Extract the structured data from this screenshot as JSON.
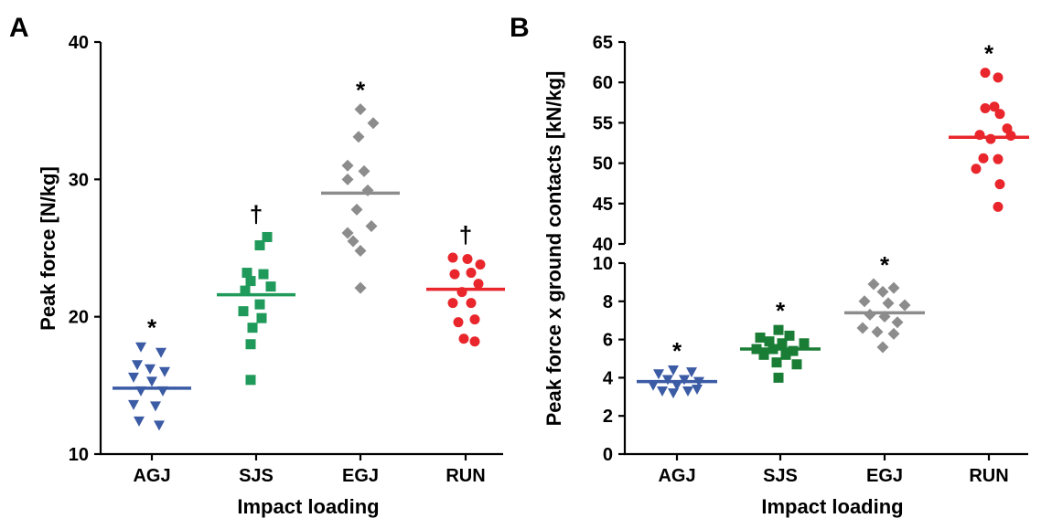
{
  "chart_data": [
    {
      "type": "scatter",
      "panel": "A",
      "xlabel": "Impact loading",
      "ylabel": "Peak force [N/kg]",
      "ylim": [
        10,
        40
      ],
      "yticks": [
        10,
        20,
        30,
        40
      ],
      "categories": [
        "AGJ",
        "SJS",
        "EGJ",
        "RUN"
      ],
      "colors": [
        "#3b5ba5",
        "#1f9a5a",
        "#8c8c8c",
        "#e8262b"
      ],
      "markers": [
        "triangle-down",
        "square",
        "diamond",
        "circle"
      ],
      "means": [
        14.8,
        21.6,
        29.0,
        22.0
      ],
      "significance": [
        "*",
        "†",
        "*",
        "†"
      ],
      "series": [
        {
          "name": "AGJ",
          "values": [
            {
              "x": -0.12,
              "y": 17.8
            },
            {
              "x": 0.1,
              "y": 17.4
            },
            {
              "x": -0.16,
              "y": 16.5
            },
            {
              "x": -0.02,
              "y": 16.2
            },
            {
              "x": 0.14,
              "y": 16.0
            },
            {
              "x": -0.2,
              "y": 15.6
            },
            {
              "x": 0.0,
              "y": 15.3
            },
            {
              "x": -0.12,
              "y": 14.6
            },
            {
              "x": 0.12,
              "y": 14.6
            },
            {
              "x": -0.2,
              "y": 13.6
            },
            {
              "x": 0.04,
              "y": 13.5
            },
            {
              "x": -0.14,
              "y": 12.4
            },
            {
              "x": 0.08,
              "y": 12.1
            }
          ]
        },
        {
          "name": "SJS",
          "values": [
            {
              "x": 0.12,
              "y": 25.8
            },
            {
              "x": 0.04,
              "y": 25.2
            },
            {
              "x": -0.1,
              "y": 23.2
            },
            {
              "x": 0.08,
              "y": 23.1
            },
            {
              "x": -0.06,
              "y": 22.6
            },
            {
              "x": 0.16,
              "y": 22.2
            },
            {
              "x": -0.12,
              "y": 21.9
            },
            {
              "x": 0.04,
              "y": 20.9
            },
            {
              "x": -0.14,
              "y": 20.4
            },
            {
              "x": 0.06,
              "y": 19.9
            },
            {
              "x": -0.04,
              "y": 19.2
            },
            {
              "x": -0.06,
              "y": 18.0
            },
            {
              "x": -0.06,
              "y": 15.4
            }
          ]
        },
        {
          "name": "EGJ",
          "values": [
            {
              "x": 0.0,
              "y": 35.1
            },
            {
              "x": 0.14,
              "y": 34.1
            },
            {
              "x": -0.02,
              "y": 33.1
            },
            {
              "x": -0.14,
              "y": 31.0
            },
            {
              "x": 0.04,
              "y": 30.6
            },
            {
              "x": -0.14,
              "y": 30.0
            },
            {
              "x": 0.08,
              "y": 29.2
            },
            {
              "x": -0.04,
              "y": 27.8
            },
            {
              "x": 0.12,
              "y": 26.6
            },
            {
              "x": -0.14,
              "y": 26.1
            },
            {
              "x": -0.08,
              "y": 25.5
            },
            {
              "x": 0.0,
              "y": 24.8
            },
            {
              "x": 0.0,
              "y": 22.1
            }
          ]
        },
        {
          "name": "RUN",
          "values": [
            {
              "x": -0.14,
              "y": 24.3
            },
            {
              "x": 0.02,
              "y": 24.2
            },
            {
              "x": 0.16,
              "y": 23.8
            },
            {
              "x": 0.06,
              "y": 23.2
            },
            {
              "x": -0.12,
              "y": 23.1
            },
            {
              "x": 0.14,
              "y": 22.4
            },
            {
              "x": -0.04,
              "y": 21.8
            },
            {
              "x": -0.14,
              "y": 21.0
            },
            {
              "x": 0.06,
              "y": 21.0
            },
            {
              "x": 0.1,
              "y": 19.8
            },
            {
              "x": -0.08,
              "y": 19.6
            },
            {
              "x": -0.02,
              "y": 18.4
            },
            {
              "x": 0.1,
              "y": 18.2
            }
          ]
        }
      ]
    },
    {
      "type": "scatter",
      "panel": "B",
      "xlabel": "Impact loading",
      "ylabel": "Peak force x ground contacts [kN/kg]",
      "broken_axis": true,
      "lower_ylim": [
        0,
        10
      ],
      "lower_yticks": [
        0,
        2,
        4,
        6,
        8,
        10
      ],
      "upper_ylim": [
        40,
        65
      ],
      "upper_yticks": [
        40,
        45,
        50,
        55,
        60,
        65
      ],
      "categories": [
        "AGJ",
        "SJS",
        "EGJ",
        "RUN"
      ],
      "colors": [
        "#3b5ba5",
        "#1a7d35",
        "#8c8c8c",
        "#e8262b"
      ],
      "markers": [
        "triangle-down",
        "square",
        "diamond",
        "circle"
      ],
      "means": [
        3.8,
        5.5,
        7.4,
        53.2
      ],
      "significance": [
        "*",
        "*",
        "*",
        "*"
      ],
      "series": [
        {
          "name": "AGJ",
          "values": [
            {
              "x": -0.2,
              "y": 4.2
            },
            {
              "x": -0.04,
              "y": 4.4
            },
            {
              "x": 0.16,
              "y": 4.3
            },
            {
              "x": -0.1,
              "y": 3.9
            },
            {
              "x": 0.08,
              "y": 3.9
            },
            {
              "x": 0.24,
              "y": 3.8
            },
            {
              "x": -0.26,
              "y": 3.6
            },
            {
              "x": 0.0,
              "y": 3.6
            },
            {
              "x": -0.16,
              "y": 3.3
            },
            {
              "x": 0.12,
              "y": 3.3
            },
            {
              "x": -0.04,
              "y": 3.2
            },
            {
              "x": 0.22,
              "y": 3.4
            }
          ]
        },
        {
          "name": "SJS",
          "values": [
            {
              "x": -0.02,
              "y": 6.5
            },
            {
              "x": -0.22,
              "y": 6.1
            },
            {
              "x": 0.1,
              "y": 6.2
            },
            {
              "x": -0.12,
              "y": 5.9
            },
            {
              "x": 0.02,
              "y": 5.8
            },
            {
              "x": 0.26,
              "y": 5.8
            },
            {
              "x": -0.26,
              "y": 5.5
            },
            {
              "x": -0.08,
              "y": 5.5
            },
            {
              "x": 0.14,
              "y": 5.4
            },
            {
              "x": -0.18,
              "y": 5.2
            },
            {
              "x": 0.06,
              "y": 5.2
            },
            {
              "x": -0.04,
              "y": 4.8
            },
            {
              "x": 0.18,
              "y": 4.7
            },
            {
              "x": -0.02,
              "y": 4.0
            }
          ]
        },
        {
          "name": "EGJ",
          "values": [
            {
              "x": -0.12,
              "y": 8.9
            },
            {
              "x": 0.1,
              "y": 8.7
            },
            {
              "x": -0.02,
              "y": 8.5
            },
            {
              "x": -0.22,
              "y": 8.0
            },
            {
              "x": 0.04,
              "y": 7.9
            },
            {
              "x": 0.22,
              "y": 7.8
            },
            {
              "x": -0.16,
              "y": 7.3
            },
            {
              "x": 0.0,
              "y": 7.2
            },
            {
              "x": 0.14,
              "y": 6.9
            },
            {
              "x": -0.24,
              "y": 6.6
            },
            {
              "x": -0.08,
              "y": 6.4
            },
            {
              "x": 0.1,
              "y": 6.3
            },
            {
              "x": -0.02,
              "y": 5.6
            }
          ]
        },
        {
          "name": "RUN",
          "values": [
            {
              "x": -0.04,
              "y": 61.2
            },
            {
              "x": 0.1,
              "y": 60.6
            },
            {
              "x": -0.04,
              "y": 56.8
            },
            {
              "x": 0.12,
              "y": 56.1
            },
            {
              "x": 0.06,
              "y": 57.0
            },
            {
              "x": 0.2,
              "y": 54.3
            },
            {
              "x": 0.24,
              "y": 53.4
            },
            {
              "x": -0.1,
              "y": 53.5
            },
            {
              "x": 0.02,
              "y": 53.0
            },
            {
              "x": -0.06,
              "y": 50.6
            },
            {
              "x": 0.1,
              "y": 50.5
            },
            {
              "x": -0.14,
              "y": 49.3
            },
            {
              "x": 0.12,
              "y": 47.4
            },
            {
              "x": 0.1,
              "y": 44.6
            }
          ]
        }
      ]
    }
  ]
}
